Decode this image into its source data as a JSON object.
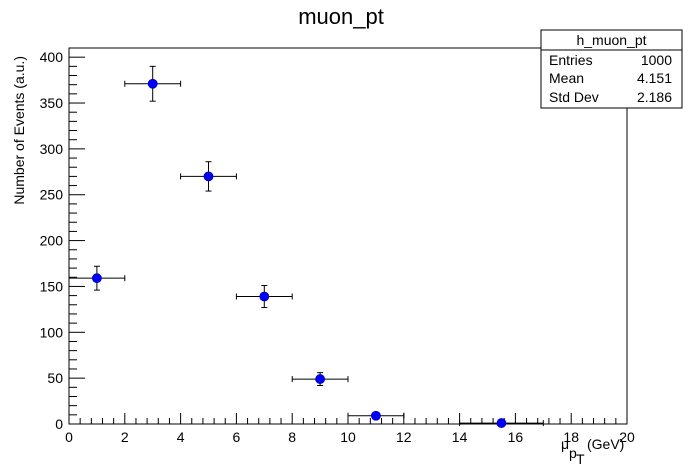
{
  "chart_data": {
    "type": "scatter",
    "title": "muon_pt",
    "xlabel": {
      "main": "μ",
      "sub1": "p",
      "sub2": "T",
      "unit": "(GeV)"
    },
    "ylabel": "Number of Events (a.u.)",
    "xlim": [
      0,
      20
    ],
    "ylim": [
      0,
      410
    ],
    "xticks": [
      0,
      2,
      4,
      6,
      8,
      10,
      12,
      14,
      16,
      18,
      20
    ],
    "yticks": [
      0,
      50,
      100,
      150,
      200,
      250,
      300,
      350,
      400
    ],
    "grid": false,
    "marker_color": "#0000ff",
    "series": [
      {
        "points": [
          {
            "x": 1,
            "y": 159,
            "xlo": 0,
            "xhi": 2,
            "yerr": 13
          },
          {
            "x": 3,
            "y": 371,
            "xlo": 2,
            "xhi": 4,
            "yerr": 19
          },
          {
            "x": 5,
            "y": 270,
            "xlo": 4,
            "xhi": 6,
            "yerr": 16
          },
          {
            "x": 7,
            "y": 139,
            "xlo": 6,
            "xhi": 8,
            "yerr": 12
          },
          {
            "x": 9,
            "y": 49,
            "xlo": 8,
            "xhi": 10,
            "yerr": 7
          },
          {
            "x": 11,
            "y": 9,
            "xlo": 10,
            "xhi": 12,
            "yerr": 3
          },
          {
            "x": 15.5,
            "y": 1,
            "xlo": 14,
            "xhi": 17,
            "yerr": 1
          }
        ]
      }
    ],
    "stats_box": {
      "name": "h_muon_pt",
      "rows": [
        {
          "label": "Entries",
          "value": "1000"
        },
        {
          "label": "Mean",
          "value": "4.151"
        },
        {
          "label": "Std Dev",
          "value": "2.186"
        }
      ]
    }
  }
}
